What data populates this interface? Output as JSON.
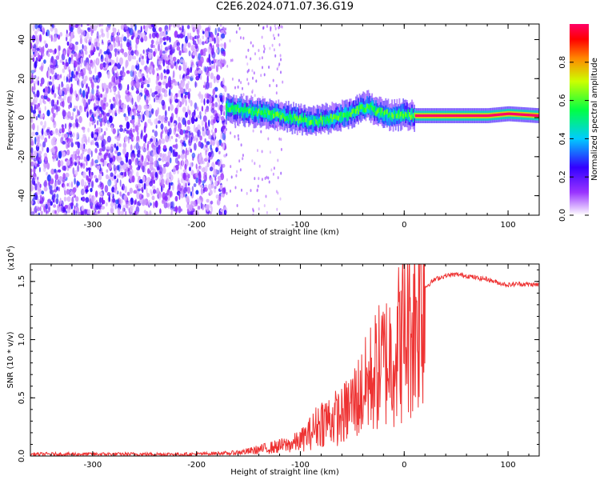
{
  "title": "C2E6.2024.071.07.36.G19",
  "chart_data": [
    {
      "type": "heatmap",
      "title": "C2E6.2024.071.07.36.G19",
      "xlabel": "Height of straight line (km)",
      "ylabel": "Frequency (Hz)",
      "xlim": [
        -360,
        130
      ],
      "ylim": [
        -50,
        48
      ],
      "x_ticks": [
        -300,
        -200,
        -100,
        0,
        100
      ],
      "x_tick_labels": [
        "-300",
        "-200",
        "-100",
        "0",
        "100"
      ],
      "y_ticks": [
        -40,
        -20,
        0,
        20,
        40
      ],
      "y_tick_labels": [
        "-40",
        "-20",
        "0",
        "20",
        "40"
      ],
      "colorbar": {
        "label": "Normalized spectral amplitude",
        "range": [
          0,
          1
        ],
        "ticks": [
          0.0,
          0.2,
          0.4,
          0.6,
          0.8
        ],
        "tick_labels": [
          "0.0",
          "0.2",
          "0.4",
          "0.6",
          "0.8"
        ]
      },
      "noise_region_x": [
        -360,
        -172
      ],
      "signal_trace": {
        "x": [
          -172,
          -160,
          -150,
          -140,
          -130,
          -120,
          -110,
          -100,
          -90,
          -80,
          -70,
          -60,
          -50,
          -40,
          -35,
          -30,
          -20,
          -10,
          0,
          10,
          20,
          40,
          60,
          80,
          100,
          130
        ],
        "y": [
          5,
          4,
          3,
          3,
          2,
          1,
          0,
          -1,
          -2,
          -1,
          0,
          1,
          3,
          5,
          6,
          4,
          2,
          1,
          2,
          1,
          1,
          1,
          1,
          1,
          2,
          1
        ]
      }
    },
    {
      "type": "line",
      "xlabel": "Height of straight line (km)",
      "ylabel": "SNR (10 * v/v)",
      "y_scale_label": "(x10",
      "y_scale_exponent": "4",
      "y_scale_suffix": ")",
      "xlim": [
        -360,
        130
      ],
      "ylim": [
        0,
        1.65
      ],
      "x_ticks": [
        -300,
        -200,
        -100,
        0,
        100
      ],
      "x_tick_labels": [
        "-300",
        "-200",
        "-100",
        "0",
        "100"
      ],
      "y_ticks": [
        0.0,
        0.5,
        1.0,
        1.5
      ],
      "y_tick_labels": [
        "0.0",
        "0.5",
        "1.0",
        "1.5"
      ],
      "color": "#ee3333",
      "series": [
        {
          "x": [
            -360,
            -300,
            -250,
            -200,
            -172,
            -150,
            -130,
            -110,
            -100,
            -90,
            -80,
            -70,
            -60,
            -50,
            -40,
            -30,
            -20,
            -10,
            0,
            10,
            20,
            30,
            40,
            50,
            60,
            70,
            80,
            90,
            100,
            110,
            130
          ],
          "y": [
            0.01,
            0.01,
            0.01,
            0.01,
            0.02,
            0.04,
            0.07,
            0.1,
            0.13,
            0.2,
            0.3,
            0.32,
            0.34,
            0.45,
            0.55,
            0.7,
            0.8,
            0.9,
            1.05,
            1.2,
            1.45,
            1.52,
            1.55,
            1.56,
            1.55,
            1.53,
            1.52,
            1.49,
            1.47,
            1.48,
            1.47
          ]
        }
      ]
    }
  ]
}
